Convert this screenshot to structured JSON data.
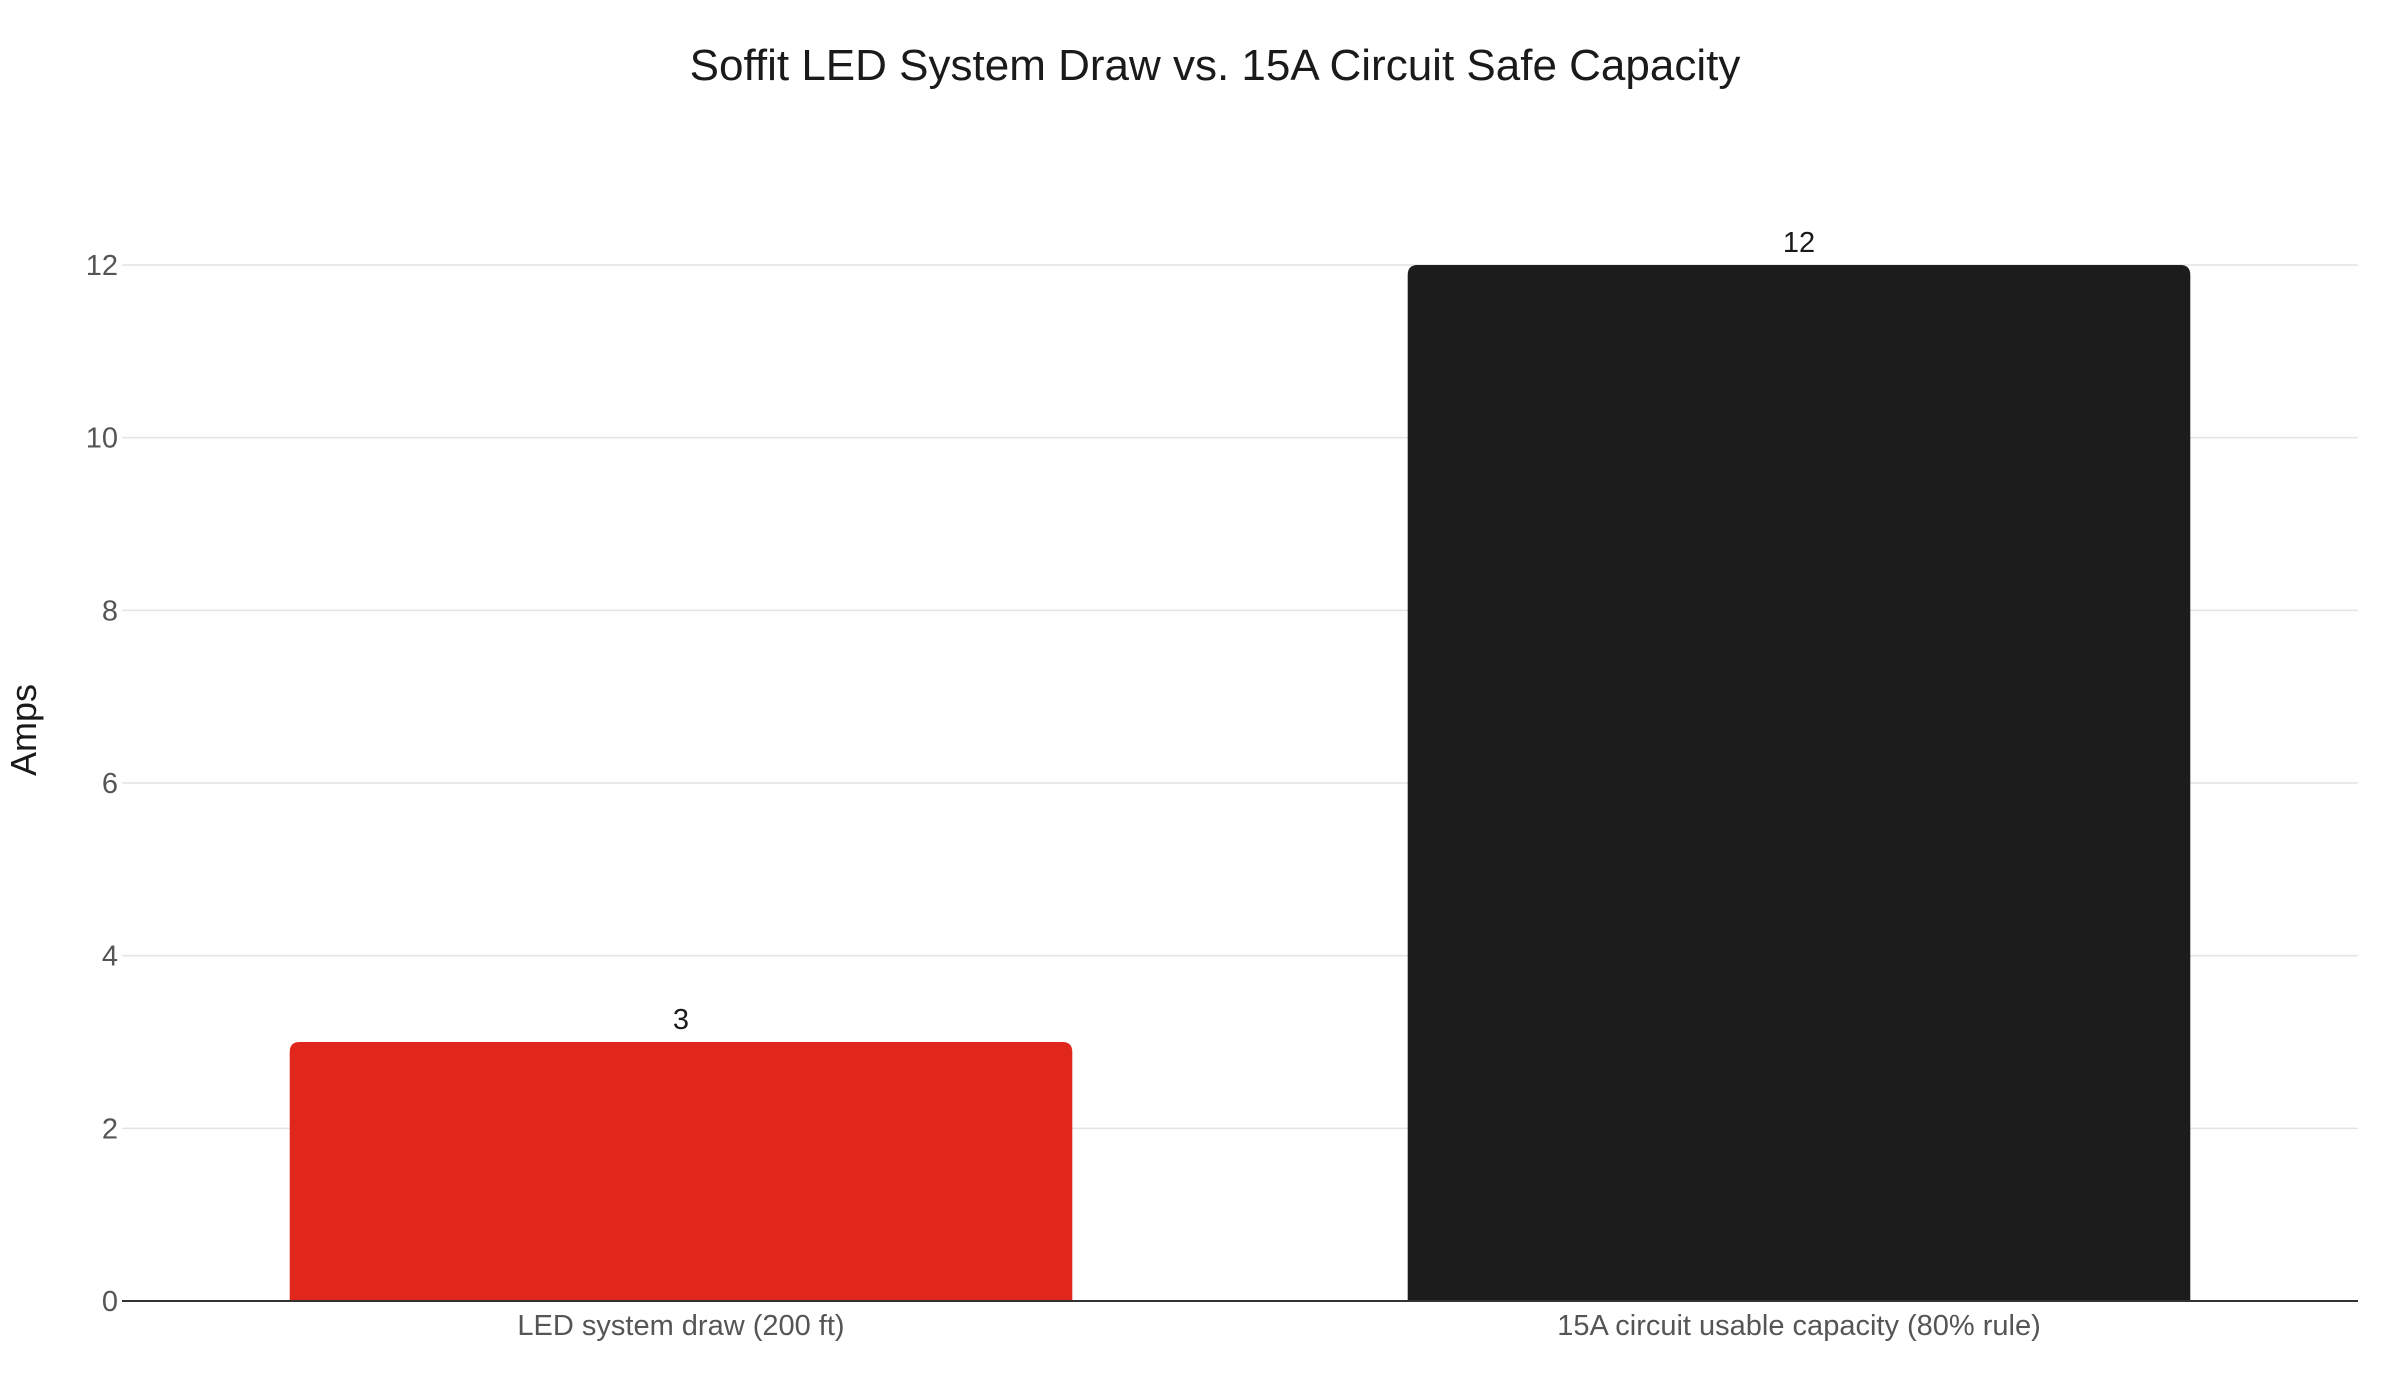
{
  "chart_data": {
    "type": "bar",
    "title": "Soffit LED System Draw vs. 15A Circuit Safe Capacity",
    "xlabel": "",
    "ylabel": "Amps",
    "categories": [
      "LED system draw (200 ft)",
      "15A circuit usable capacity (80% rule)"
    ],
    "values": [
      3,
      12
    ],
    "data_labels": [
      "3",
      "12"
    ],
    "bar_colors": [
      "#e1261c",
      "#1c1c1c"
    ],
    "ylim": [
      0,
      12
    ],
    "yticks": [
      0,
      2,
      4,
      6,
      8,
      10,
      12
    ],
    "grid": true,
    "legend": "none"
  }
}
